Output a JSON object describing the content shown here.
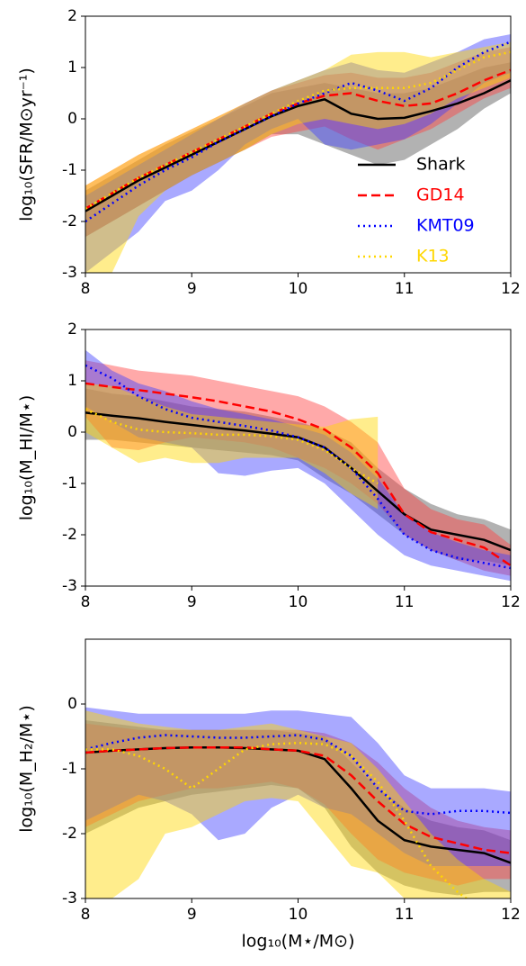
{
  "chart_data": [
    {
      "type": "line",
      "ylabel": "log₁₀(SFR/M⊙yr⁻¹)",
      "legend": "lower right",
      "x": [
        8,
        8.25,
        8.5,
        8.75,
        9,
        9.25,
        9.5,
        9.75,
        10,
        10.25,
        10.5,
        10.75,
        11,
        11.25,
        11.5,
        11.75,
        12
      ],
      "xlim": [
        8,
        12
      ],
      "xticks": [
        8,
        9,
        10,
        11,
        12
      ],
      "ylim": [
        -3,
        2
      ],
      "yticks": [
        -3,
        -2,
        -1,
        0,
        1,
        2
      ],
      "series": [
        {
          "name": "Shark",
          "color": "#000000",
          "dash": "solid",
          "band": "#555555",
          "values": [
            -1.8,
            -1.5,
            -1.2,
            -0.95,
            -0.7,
            -0.45,
            -0.2,
            0.05,
            0.25,
            0.38,
            0.1,
            0.0,
            0.02,
            0.15,
            0.3,
            0.5,
            0.75
          ],
          "lower": [
            -2.3,
            -2.0,
            -1.7,
            -1.4,
            -1.1,
            -0.85,
            -0.6,
            -0.3,
            -0.3,
            -0.5,
            -0.7,
            -0.9,
            -0.8,
            -0.5,
            -0.2,
            0.2,
            0.5
          ],
          "upper": [
            -1.4,
            -1.1,
            -0.8,
            -0.5,
            -0.25,
            0,
            0.25,
            0.5,
            0.6,
            0.7,
            0.6,
            0.5,
            0.5,
            0.6,
            0.8,
            1.0,
            1.1
          ]
        },
        {
          "name": "GD14",
          "color": "#ff0000",
          "dash": "dashed",
          "band": "#ff4040",
          "values": [
            -1.75,
            -1.45,
            -1.15,
            -0.9,
            -0.65,
            -0.4,
            -0.15,
            0.1,
            0.3,
            0.45,
            0.5,
            0.35,
            0.25,
            0.3,
            0.5,
            0.75,
            0.95
          ],
          "lower": [
            -2.3,
            -2.0,
            -1.7,
            -1.4,
            -1.1,
            -0.85,
            -0.6,
            -0.35,
            -0.25,
            -0.15,
            -0.4,
            -0.6,
            -0.4,
            -0.2,
            0.1,
            0.4,
            0.6
          ],
          "upper": [
            -1.3,
            -1.0,
            -0.7,
            -0.45,
            -0.2,
            0.05,
            0.3,
            0.55,
            0.7,
            0.85,
            0.9,
            0.8,
            0.8,
            0.9,
            1.1,
            1.3,
            1.4
          ]
        },
        {
          "name": "KMT09",
          "color": "#0000ff",
          "dash": "dotted",
          "band": "#4040ff",
          "values": [
            -2.0,
            -1.65,
            -1.3,
            -1.0,
            -0.75,
            -0.45,
            -0.2,
            0.05,
            0.3,
            0.5,
            0.7,
            0.55,
            0.35,
            0.6,
            1.0,
            1.3,
            1.5
          ],
          "lower": [
            -3,
            -2.6,
            -2.2,
            -1.6,
            -1.4,
            -1.0,
            -0.5,
            -0.2,
            0.0,
            -0.5,
            -0.6,
            -0.5,
            -0.4,
            -0.1,
            0.3,
            0.7,
            0.9
          ],
          "upper": [
            -1.5,
            -1.2,
            -0.9,
            -0.6,
            -0.3,
            0,
            0.3,
            0.55,
            0.75,
            0.95,
            1.1,
            0.95,
            0.9,
            1.1,
            1.3,
            1.55,
            1.65
          ]
        },
        {
          "name": "K13",
          "color": "#ffd700",
          "dash": "dotted",
          "band": "#ffd700",
          "values": [
            -1.75,
            -1.45,
            -1.15,
            -0.9,
            -0.65,
            -0.4,
            -0.15,
            0.1,
            0.35,
            0.55,
            0.6,
            0.6,
            0.6,
            0.7,
            0.95,
            1.2,
            1.3
          ],
          "lower": [
            -3,
            -3,
            -1.9,
            -1.4,
            -1.1,
            -0.85,
            -0.6,
            -0.3,
            -0.1,
            0.0,
            -0.1,
            -0.2,
            -0.1,
            0.1,
            0.4,
            0.6,
            0.8
          ],
          "upper": [
            -1.3,
            -1.0,
            -0.7,
            -0.45,
            -0.2,
            0.05,
            0.3,
            0.55,
            0.75,
            0.95,
            1.25,
            1.3,
            1.3,
            1.2,
            1.3,
            1.4,
            1.5
          ]
        }
      ]
    },
    {
      "type": "line",
      "ylabel": "log₁₀(M_HI/M⋆)",
      "x": [
        8,
        8.25,
        8.5,
        8.75,
        9,
        9.25,
        9.5,
        9.75,
        10,
        10.25,
        10.5,
        10.75,
        11,
        11.25,
        11.5,
        11.75,
        12
      ],
      "xlim": [
        8,
        12
      ],
      "xticks": [
        8,
        9,
        10,
        11,
        12
      ],
      "ylim": [
        -3,
        2
      ],
      "yticks": [
        -3,
        -2,
        -1,
        0,
        1,
        2
      ],
      "series": [
        {
          "color": "#000000",
          "dash": "solid",
          "band": "#555555",
          "values": [
            0.38,
            0.32,
            0.27,
            0.2,
            0.14,
            0.08,
            0.03,
            -0.03,
            -0.1,
            -0.3,
            -0.7,
            -1.15,
            -1.6,
            -1.9,
            -2.0,
            -2.1,
            -2.3
          ],
          "lower": [
            -0.15,
            -0.15,
            -0.2,
            -0.25,
            -0.3,
            -0.35,
            -0.4,
            -0.45,
            -0.55,
            -0.9,
            -1.2,
            -1.6,
            -2.0,
            -2.3,
            -2.5,
            -2.5,
            -2.6
          ],
          "upper": [
            0.85,
            0.75,
            0.7,
            0.6,
            0.5,
            0.45,
            0.4,
            0.3,
            0.2,
            0.05,
            -0.2,
            -0.7,
            -1.1,
            -1.4,
            -1.6,
            -1.7,
            -1.9
          ]
        },
        {
          "color": "#ff0000",
          "dash": "dashed",
          "band": "#ff4040",
          "values": [
            0.95,
            0.88,
            0.82,
            0.75,
            0.68,
            0.6,
            0.5,
            0.4,
            0.25,
            0.05,
            -0.3,
            -0.8,
            -1.6,
            -1.95,
            -2.1,
            -2.25,
            -2.6
          ],
          "lower": [
            0.3,
            -0.3,
            -0.35,
            -0.2,
            -0.1,
            -0.15,
            -0.2,
            -0.3,
            -0.5,
            -0.7,
            -1.0,
            -1.4,
            -2.0,
            -2.3,
            -2.5,
            -2.7,
            -2.8
          ],
          "upper": [
            1.4,
            1.3,
            1.2,
            1.15,
            1.1,
            1.0,
            0.9,
            0.8,
            0.7,
            0.5,
            0.2,
            -0.2,
            -1.1,
            -1.5,
            -1.7,
            -1.8,
            -2.2
          ]
        },
        {
          "color": "#0000ff",
          "dash": "dotted",
          "band": "#4040ff",
          "values": [
            1.3,
            1.05,
            0.7,
            0.45,
            0.28,
            0.2,
            0.12,
            0.03,
            -0.1,
            -0.3,
            -0.7,
            -1.3,
            -2.0,
            -2.3,
            -2.45,
            -2.55,
            -2.65
          ],
          "lower": [
            0.5,
            0.2,
            -0.1,
            -0.2,
            -0.3,
            -0.8,
            -0.85,
            -0.75,
            -0.7,
            -1.0,
            -1.5,
            -2.0,
            -2.4,
            -2.6,
            -2.7,
            -2.8,
            -2.9
          ],
          "upper": [
            1.6,
            1.2,
            0.95,
            0.8,
            0.6,
            0.45,
            0.35,
            0.25,
            0.1,
            -0.05,
            -0.4,
            -0.9,
            -1.6,
            -1.95,
            -2.15,
            -2.3,
            -2.4
          ]
        },
        {
          "color": "#ffd700",
          "dash": "dotted",
          "band": "#ffd700",
          "values": [
            0.45,
            0.2,
            0.05,
            0.0,
            -0.02,
            -0.05,
            -0.05,
            -0.08,
            -0.15,
            -0.35,
            -0.7,
            -1.0,
            null,
            null,
            null,
            null,
            null
          ],
          "lower": [
            0.0,
            -0.3,
            -0.6,
            -0.5,
            -0.6,
            -0.6,
            -0.5,
            -0.5,
            -0.5,
            -0.8,
            -1.2,
            -1.5,
            null,
            null,
            null,
            null,
            null
          ],
          "upper": [
            0.95,
            0.9,
            0.7,
            0.5,
            0.35,
            0.3,
            0.25,
            0.2,
            0.15,
            0.1,
            0.25,
            0.3,
            null,
            null,
            null,
            null,
            null
          ]
        }
      ]
    },
    {
      "type": "line",
      "ylabel": "log₁₀(M_H₂/M⋆)",
      "xlabel": "log₁₀(M⋆/M⊙)",
      "x": [
        8,
        8.25,
        8.5,
        8.75,
        9,
        9.25,
        9.5,
        9.75,
        10,
        10.25,
        10.5,
        10.75,
        11,
        11.25,
        11.5,
        11.75,
        12
      ],
      "xlim": [
        8,
        12
      ],
      "xticks": [
        8,
        9,
        10,
        11,
        12
      ],
      "ylim": [
        -3,
        1
      ],
      "yticks": [
        -3,
        -2,
        -1,
        0
      ],
      "series": [
        {
          "color": "#000000",
          "dash": "solid",
          "band": "#555555",
          "values": [
            -0.75,
            -0.72,
            -0.7,
            -0.68,
            -0.67,
            -0.67,
            -0.68,
            -0.7,
            -0.72,
            -0.85,
            -1.3,
            -1.8,
            -2.1,
            -2.2,
            -2.25,
            -2.3,
            -2.45
          ],
          "lower": [
            -2.0,
            -1.8,
            -1.6,
            -1.5,
            -1.4,
            -1.35,
            -1.3,
            -1.25,
            -1.3,
            -1.6,
            -2.2,
            -2.6,
            -2.8,
            -2.9,
            -2.95,
            -2.9,
            -2.9
          ],
          "upper": [
            -0.25,
            -0.3,
            -0.35,
            -0.4,
            -0.4,
            -0.4,
            -0.4,
            -0.4,
            -0.45,
            -0.5,
            -0.9,
            -1.3,
            -1.6,
            -1.8,
            -1.9,
            -1.95,
            -2.1
          ]
        },
        {
          "color": "#ff0000",
          "dash": "dashed",
          "band": "#ff4040",
          "values": [
            -0.75,
            -0.72,
            -0.7,
            -0.68,
            -0.67,
            -0.67,
            -0.67,
            -0.7,
            -0.72,
            -0.8,
            -1.1,
            -1.5,
            -1.85,
            -2.05,
            -2.15,
            -2.25,
            -2.3
          ],
          "lower": [
            -1.9,
            -1.7,
            -1.5,
            -1.4,
            -1.3,
            -1.3,
            -1.25,
            -1.2,
            -1.3,
            -1.55,
            -2.0,
            -2.4,
            -2.6,
            -2.7,
            -2.8,
            -2.7,
            -2.7
          ],
          "upper": [
            -0.3,
            -0.35,
            -0.4,
            -0.4,
            -0.4,
            -0.4,
            -0.4,
            -0.4,
            -0.4,
            -0.45,
            -0.6,
            -0.9,
            -1.3,
            -1.6,
            -1.8,
            -1.9,
            -1.95
          ]
        },
        {
          "color": "#0000ff",
          "dash": "dotted",
          "band": "#4040ff",
          "values": [
            -0.7,
            -0.6,
            -0.52,
            -0.48,
            -0.5,
            -0.52,
            -0.52,
            -0.5,
            -0.48,
            -0.55,
            -0.8,
            -1.3,
            -1.65,
            -1.7,
            -1.65,
            -1.65,
            -1.68
          ],
          "lower": [
            -1.8,
            -1.6,
            -1.4,
            -1.5,
            -1.7,
            -2.1,
            -2.0,
            -1.6,
            -1.4,
            -1.6,
            -1.7,
            -2.0,
            -2.3,
            -2.5,
            -2.5,
            -2.5,
            -2.5
          ],
          "upper": [
            -0.05,
            -0.1,
            -0.15,
            -0.15,
            -0.15,
            -0.15,
            -0.15,
            -0.1,
            -0.1,
            -0.15,
            -0.2,
            -0.6,
            -1.1,
            -1.3,
            -1.3,
            -1.3,
            -1.35
          ]
        },
        {
          "color": "#ffd700",
          "dash": "dotted",
          "band": "#ffd700",
          "values": [
            -0.7,
            -0.7,
            -0.8,
            -1.0,
            -1.3,
            -1.0,
            -0.7,
            -0.62,
            -0.6,
            -0.62,
            -0.8,
            -1.2,
            -1.8,
            -2.5,
            -2.9,
            -3.2,
            -3.4
          ],
          "lower": [
            -3,
            -3,
            -2.7,
            -2.0,
            -1.9,
            -1.7,
            -1.5,
            -1.45,
            -1.5,
            -2.0,
            -2.5,
            -2.6,
            -3,
            -3,
            -3,
            -3,
            -3
          ],
          "upper": [
            -0.1,
            -0.2,
            -0.3,
            -0.35,
            -0.4,
            -0.4,
            -0.35,
            -0.3,
            -0.4,
            -0.5,
            -0.6,
            -1.0,
            -1.5,
            -2.0,
            -2.4,
            -2.7,
            -2.9
          ]
        }
      ]
    }
  ]
}
